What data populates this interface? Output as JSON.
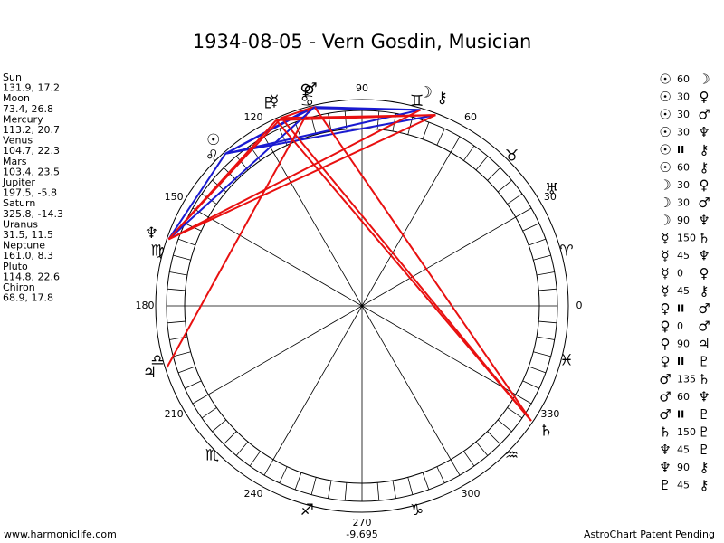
{
  "title": "1934-08-05 - Vern Gosdin, Musician",
  "planets": [
    {
      "name": "Sun",
      "pos": "131.9, 17.2",
      "glyph": "☉"
    },
    {
      "name": "Moon",
      "pos": "73.4, 26.8",
      "glyph": "☽"
    },
    {
      "name": "Mercury",
      "pos": "113.2, 20.7",
      "glyph": "☿"
    },
    {
      "name": "Venus",
      "pos": "104.7, 22.3",
      "glyph": "♀"
    },
    {
      "name": "Mars",
      "pos": "103.4, 23.5",
      "glyph": "♂"
    },
    {
      "name": "Jupiter",
      "pos": "197.5, -5.8",
      "glyph": "♃"
    },
    {
      "name": "Saturn",
      "pos": "325.8, -14.3",
      "glyph": "♄"
    },
    {
      "name": "Uranus",
      "pos": "31.5, 11.5",
      "glyph": "♅"
    },
    {
      "name": "Neptune",
      "pos": "161.0, 8.3",
      "glyph": "♆"
    },
    {
      "name": "Pluto",
      "pos": "114.8, 22.6",
      "glyph": "♇"
    },
    {
      "name": "Chiron",
      "pos": "68.9, 17.8",
      "glyph": "⚷"
    }
  ],
  "degree_labels": [
    "0",
    "30",
    "60",
    "90",
    "120",
    "150",
    "180",
    "210",
    "240",
    "270",
    "300",
    "330"
  ],
  "signs": [
    "♈",
    "♉",
    "♊",
    "♋",
    "♌",
    "♍",
    "♎",
    "♏",
    "♐",
    "♑",
    "♒",
    "♓"
  ],
  "aspects": [
    [
      "☉",
      "60",
      "☽"
    ],
    [
      "☉",
      "30",
      "♀"
    ],
    [
      "☉",
      "30",
      "♂"
    ],
    [
      "☉",
      "30",
      "♆"
    ],
    [
      "☉",
      "II",
      "⚷"
    ],
    [
      "☉",
      "60",
      "⚷"
    ],
    [
      "☽",
      "30",
      "♀"
    ],
    [
      "☽",
      "30",
      "♂"
    ],
    [
      "☽",
      "90",
      "♆"
    ],
    [
      "☿",
      "150",
      "♄"
    ],
    [
      "☿",
      "45",
      "♆"
    ],
    [
      "☿",
      "0",
      "♀"
    ],
    [
      "☿",
      "45",
      "⚷"
    ],
    [
      "♀",
      "II",
      "♂"
    ],
    [
      "♀",
      "0",
      "♂"
    ],
    [
      "♀",
      "90",
      "♃"
    ],
    [
      "♀",
      "II",
      "♇"
    ],
    [
      "♂",
      "135",
      "♄"
    ],
    [
      "♂",
      "60",
      "♆"
    ],
    [
      "♂",
      "II",
      "♇"
    ],
    [
      "♄",
      "150",
      "♇"
    ],
    [
      "♆",
      "45",
      "♇"
    ],
    [
      "♆",
      "90",
      "⚷"
    ],
    [
      "♇",
      "45",
      "⚷"
    ]
  ],
  "bottom_value": "-9,695",
  "footer_left": "www.harmoniclife.com",
  "footer_right": "AstroChart Patent Pending"
}
